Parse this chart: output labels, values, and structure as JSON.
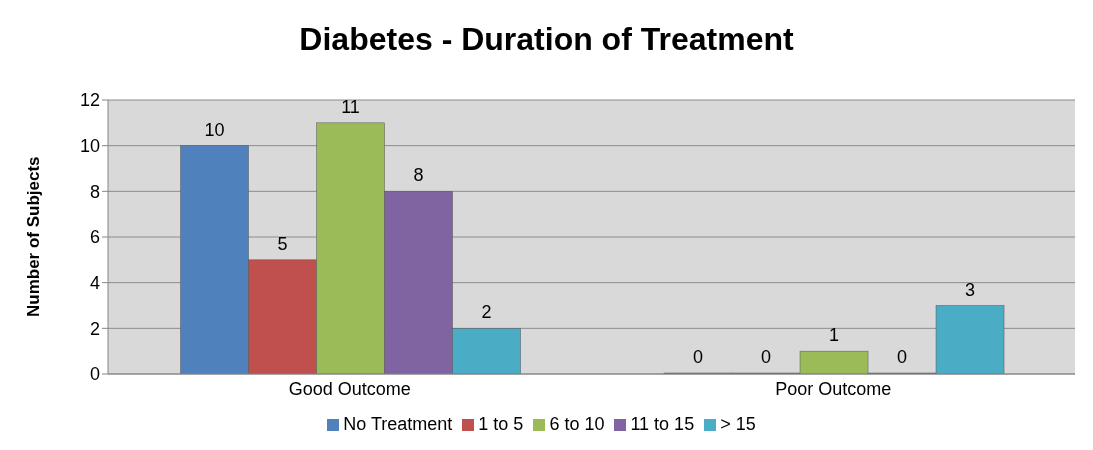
{
  "chart_data": {
    "type": "bar",
    "title": "Diabetes - Duration of Treatment",
    "ylabel": "Number of Subjects",
    "categories": [
      "Good Outcome",
      "Poor Outcome"
    ],
    "series": [
      {
        "name": "No Treatment",
        "color": "#4f81bd",
        "values": [
          10,
          0
        ]
      },
      {
        "name": "1 to 5",
        "color": "#c0504d",
        "values": [
          5,
          0
        ]
      },
      {
        "name": "6 to 10",
        "color": "#9bbb59",
        "values": [
          11,
          1
        ]
      },
      {
        "name": "11 to 15",
        "color": "#8064a2",
        "values": [
          8,
          0
        ]
      },
      {
        "name": "> 15",
        "color": "#4bacc6",
        "values": [
          2,
          3
        ]
      }
    ],
    "ylim": [
      0,
      12
    ],
    "yticks": [
      0,
      2,
      4,
      6,
      8,
      10,
      12
    ],
    "grid": "y",
    "legend": "bottom",
    "data_labels": true
  }
}
